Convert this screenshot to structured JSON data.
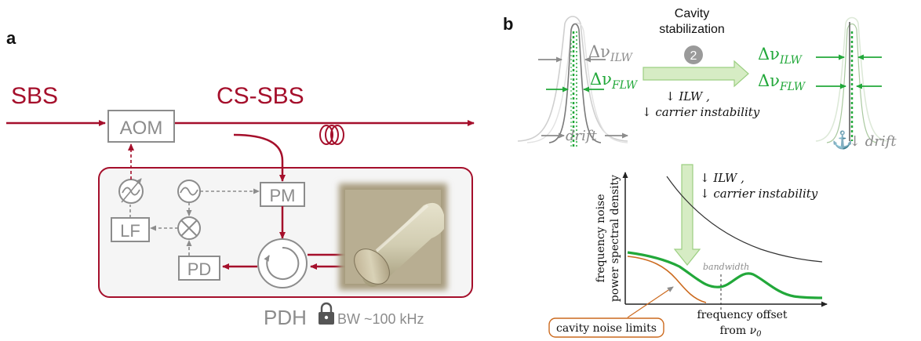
{
  "panel_a": {
    "label": "a",
    "sbs": "SBS",
    "cs_sbs": "CS-SBS",
    "aom": "AOM",
    "pm": "PM",
    "lf": "LF",
    "pd": "PD",
    "pdh": "PDH",
    "bw": "BW ~100 kHz",
    "colors": {
      "laser": "#a50f2b",
      "gray": "#8c8c8c",
      "box_bg": "#f5f5f5"
    }
  },
  "panel_b": {
    "label": "b",
    "cavity_line1": "Cavity",
    "cavity_line2": "stabilization",
    "step_number": "2",
    "delta_nu": "Δν",
    "sub_ilw": "ILW",
    "sub_flw": "FLW",
    "ilw_reduce": "↓ ILW ,",
    "carrier_reduce": "↓ carrier instability",
    "drift": "drift",
    "drift_reduced": "↓ drift",
    "ylabel_line1": "frequency noise",
    "ylabel_line2": "power spectral density",
    "xlabel_line1": "frequency offset",
    "xlabel_line2": "from ",
    "nu0": "ν",
    "nu0_sub": "0",
    "bandwidth": "bandwidth",
    "cavity_noise": "cavity noise limits",
    "colors": {
      "green": "#22a83a",
      "orange": "#cc6a1e",
      "gray": "#8c8c8c",
      "dark": "#333333",
      "arrow_fill": "#d6ecc4"
    }
  }
}
